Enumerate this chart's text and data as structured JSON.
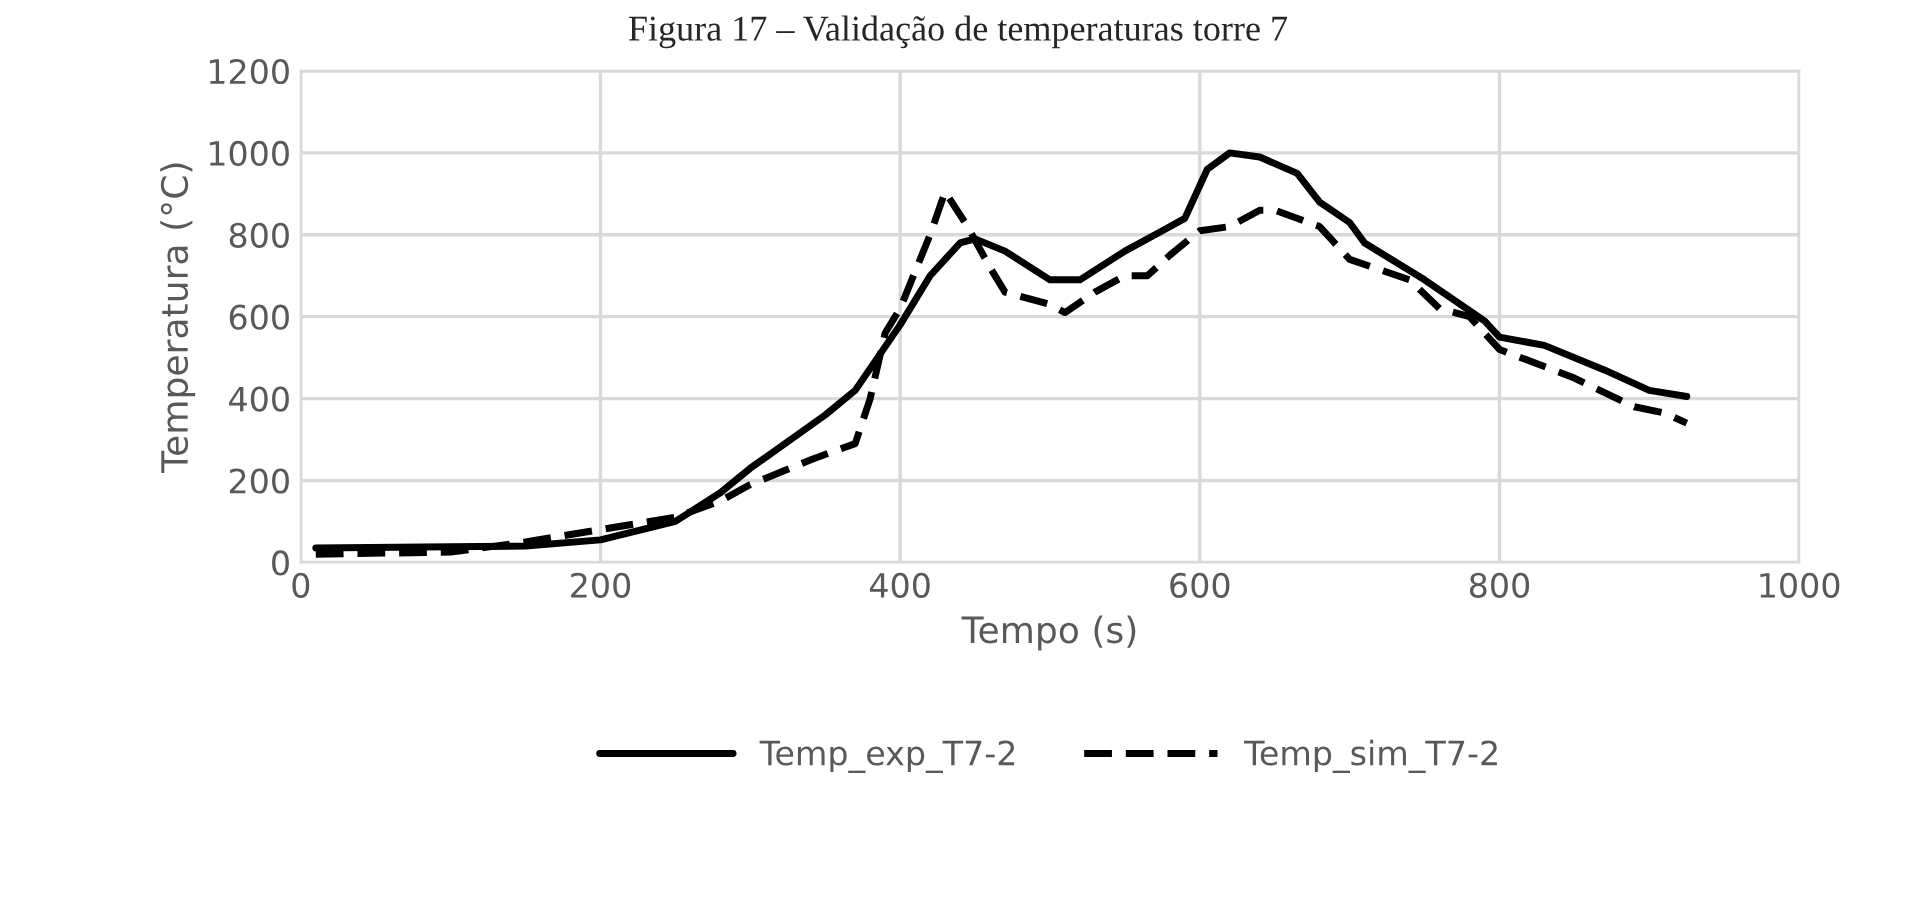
{
  "chart_data": {
    "type": "line",
    "title": "Figura 17 – Validação de temperaturas torre 7",
    "xlabel": "Tempo (s)",
    "ylabel": "Temperatura (°C)",
    "xlim": [
      0,
      1000
    ],
    "xticks": [
      0,
      200,
      400,
      600,
      800,
      1000
    ],
    "ylim": [
      0,
      1200
    ],
    "yticks": [
      0,
      200,
      400,
      600,
      800,
      1000,
      1200
    ],
    "grid": true,
    "legend": "bottom",
    "series": [
      {
        "name": "Temp_exp_T7-2",
        "color": "#000000",
        "line_style": "solid",
        "x": [
          10,
          100,
          150,
          200,
          250,
          280,
          300,
          350,
          370,
          400,
          420,
          440,
          450,
          470,
          500,
          520,
          550,
          575,
          590,
          605,
          620,
          640,
          665,
          680,
          700,
          710,
          750,
          770,
          790,
          800,
          830,
          870,
          900,
          925
        ],
        "values": [
          35,
          38,
          40,
          55,
          100,
          170,
          230,
          360,
          420,
          580,
          700,
          780,
          790,
          760,
          690,
          690,
          760,
          810,
          840,
          960,
          1000,
          990,
          950,
          880,
          830,
          780,
          690,
          640,
          590,
          550,
          530,
          470,
          420,
          405
        ]
      },
      {
        "name": "Temp_sim_T7-2",
        "color": "#000000",
        "line_style": "dashed",
        "x": [
          10,
          100,
          150,
          200,
          250,
          280,
          300,
          340,
          370,
          380,
          390,
          400,
          420,
          430,
          445,
          460,
          470,
          500,
          510,
          530,
          550,
          565,
          580,
          600,
          620,
          640,
          650,
          680,
          700,
          740,
          760,
          780,
          790,
          800,
          850,
          890,
          910,
          925
        ],
        "values": [
          20,
          25,
          50,
          80,
          110,
          150,
          190,
          250,
          290,
          400,
          560,
          620,
          800,
          905,
          820,
          720,
          660,
          630,
          610,
          660,
          700,
          700,
          750,
          810,
          820,
          860,
          860,
          820,
          740,
          690,
          620,
          600,
          560,
          520,
          450,
          380,
          365,
          340
        ]
      }
    ]
  }
}
